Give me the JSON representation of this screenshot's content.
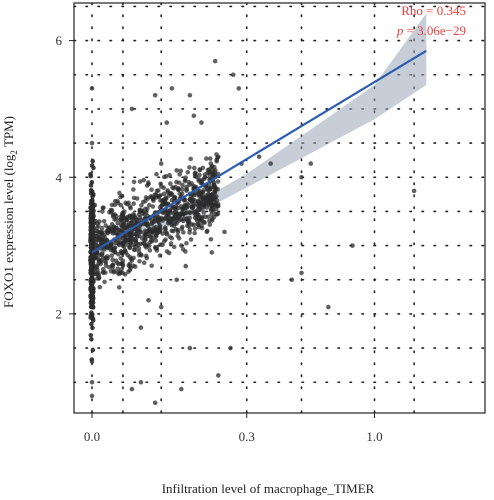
{
  "chart_data": {
    "type": "scatter",
    "title": "",
    "xlabel": "Infiltration level of macrophage_TIMER",
    "ylabel_parts": [
      "FOXO1 expression level (log",
      "2",
      " TPM)"
    ],
    "x_ticks": [
      {
        "value": 0.0,
        "label": "0.0"
      },
      {
        "value": 0.3,
        "label": "0.3"
      },
      {
        "value": 1.0,
        "label": "1.0"
      }
    ],
    "y_ticks": [
      {
        "value": 2,
        "label": "2"
      },
      {
        "value": 4,
        "label": "4"
      },
      {
        "value": 6,
        "label": "6"
      }
    ],
    "x_scale": "sqrt",
    "xlim": [
      0,
      1.45
    ],
    "ylim": [
      0.55,
      6.55
    ],
    "grid": "dotted",
    "annotation": {
      "rho": "Rho = 0.345",
      "p_label": "p",
      "p_value": " = 3.06e−29"
    },
    "colors": {
      "points": "#2b2b2b",
      "fit_line": "#2a5db0",
      "ci_band": "#9aa5b8",
      "annotation": "#e8413c"
    },
    "fit_line": {
      "x": [
        0.0,
        1.4
      ],
      "y": [
        2.9,
        5.85
      ]
    },
    "ci_band": {
      "x": [
        0.0,
        0.1,
        0.3,
        0.6,
        1.0,
        1.4
      ],
      "lower": [
        2.82,
        3.35,
        3.85,
        4.35,
        4.85,
        5.35
      ],
      "upper": [
        2.98,
        3.5,
        4.05,
        4.7,
        5.35,
        6.4
      ]
    },
    "points": [
      [
        0.03,
        1.0
      ],
      [
        0.05,
        0.7
      ],
      [
        0.1,
        0.9
      ],
      [
        0.0,
        0.8
      ],
      [
        0.0,
        1.3
      ],
      [
        0.0,
        5.3
      ],
      [
        0.0,
        4.5
      ],
      [
        0.02,
        5.0
      ],
      [
        0.05,
        5.2
      ],
      [
        0.07,
        4.8
      ],
      [
        0.08,
        5.3
      ],
      [
        0.12,
        5.2
      ],
      [
        0.13,
        4.9
      ],
      [
        0.15,
        4.8
      ],
      [
        0.19,
        5.7
      ],
      [
        0.25,
        5.5
      ],
      [
        0.27,
        5.3
      ],
      [
        0.2,
        4.3
      ],
      [
        0.28,
        4.2
      ],
      [
        0.35,
        4.3
      ],
      [
        0.4,
        4.2
      ],
      [
        0.55,
        4.0
      ],
      [
        0.6,
        4.2
      ],
      [
        0.5,
        2.5
      ],
      [
        0.55,
        2.6
      ],
      [
        0.7,
        2.1
      ],
      [
        0.85,
        3.0
      ],
      [
        1.3,
        3.8
      ],
      [
        0.2,
        1.1
      ],
      [
        0.24,
        1.5
      ],
      [
        0.12,
        1.5
      ],
      [
        0.02,
        0.9
      ],
      [
        0.0,
        1.0
      ],
      [
        0.04,
        2.2
      ],
      [
        0.03,
        1.8
      ],
      [
        0.06,
        2.1
      ],
      [
        0.01,
        2.6
      ],
      [
        0.09,
        2.5
      ],
      [
        0.11,
        2.7
      ],
      [
        0.14,
        3.8
      ],
      [
        0.16,
        4.0
      ],
      [
        0.17,
        3.6
      ],
      [
        0.06,
        4.2
      ],
      [
        0.09,
        4.1
      ],
      [
        0.04,
        3.9
      ],
      [
        0.18,
        2.9
      ],
      [
        0.22,
        3.2
      ],
      [
        0.08,
        3.3
      ],
      [
        0.1,
        3.0
      ]
    ]
  }
}
